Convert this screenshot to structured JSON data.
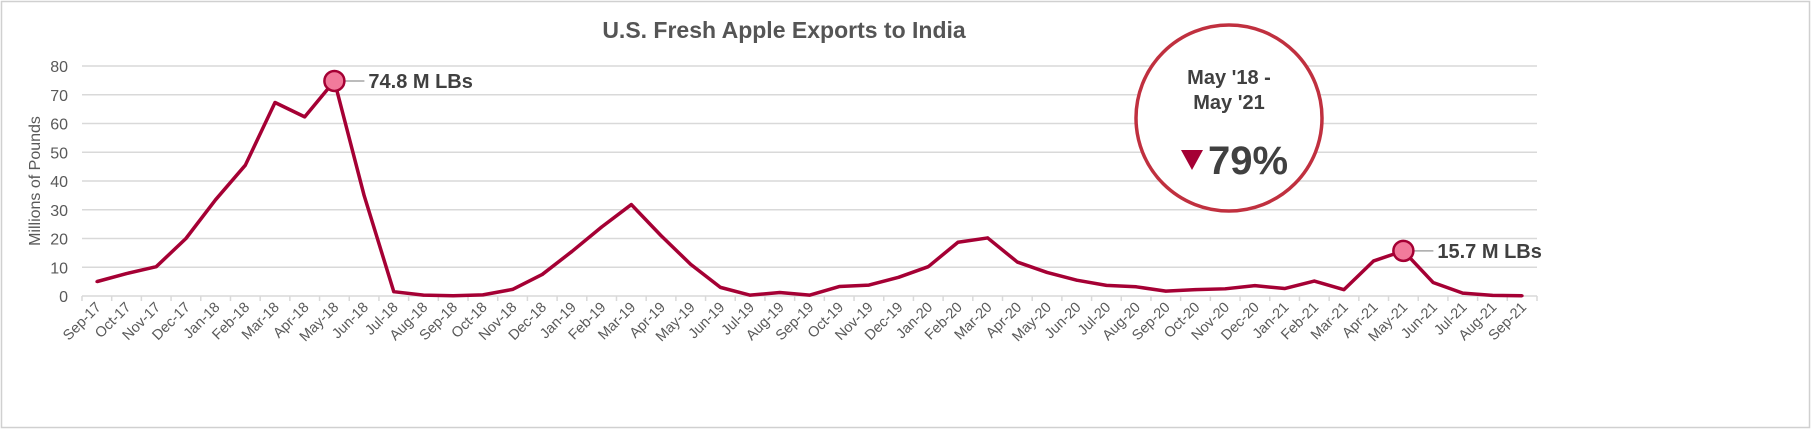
{
  "chart_data": {
    "type": "line",
    "title": "U.S. Fresh Apple Exports to India",
    "ylabel": "Millions of Pounds",
    "xlabel": "",
    "ylim": [
      0,
      80
    ],
    "yticks": [
      0,
      10,
      20,
      30,
      40,
      50,
      60,
      70,
      80
    ],
    "grid": true,
    "line_color": "#A50034",
    "categories": [
      "Sep-17",
      "Oct-17",
      "Nov-17",
      "Dec-17",
      "Jan-18",
      "Feb-18",
      "Mar-18",
      "Apr-18",
      "May-18",
      "Jun-18",
      "Jul-18",
      "Aug-18",
      "Sep-18",
      "Oct-18",
      "Nov-18",
      "Dec-18",
      "Jan-19",
      "Feb-19",
      "Mar-19",
      "Apr-19",
      "May-19",
      "Jun-19",
      "Jul-19",
      "Aug-19",
      "Sep-19",
      "Oct-19",
      "Nov-19",
      "Dec-19",
      "Jan-20",
      "Feb-20",
      "Mar-20",
      "Apr-20",
      "May-20",
      "Jun-20",
      "Jul-20",
      "Aug-20",
      "Sep-20",
      "Oct-20",
      "Nov-20",
      "Dec-20",
      "Jan-21",
      "Feb-21",
      "Mar-21",
      "Apr-21",
      "May-21",
      "Jun-21",
      "Jul-21",
      "Aug-21",
      "Sep-21"
    ],
    "values": [
      5,
      7.8,
      10.2,
      20,
      33.5,
      45.5,
      67.3,
      62.3,
      74.8,
      35,
      1.5,
      0.3,
      0.1,
      0.4,
      2.3,
      7.5,
      15.5,
      24,
      31.8,
      21,
      11,
      3,
      0.3,
      1.2,
      0.3,
      3.3,
      3.8,
      6.5,
      10.2,
      18.7,
      20.2,
      11.8,
      8.2,
      5.5,
      3.7,
      3.2,
      1.7,
      2.2,
      2.5,
      3.6,
      2.6,
      5.2,
      2.2,
      12.2,
      15.7,
      4.7,
      1,
      0.2,
      0.1
    ],
    "annotations": [
      {
        "category": "May-18",
        "label": "74.8 M LBs"
      },
      {
        "category": "May-21",
        "label": "15.7 M LBs"
      }
    ],
    "callout": {
      "line1": "May '18 -",
      "line2": "May '21",
      "change": "79%",
      "direction": "down",
      "color": "#A50034",
      "border_color": "#C0303F"
    }
  }
}
